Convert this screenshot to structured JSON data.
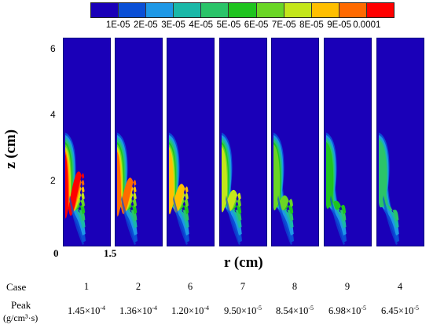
{
  "colorbar": {
    "colors": [
      "#1a00b8",
      "#0a4fd6",
      "#1e98e6",
      "#1ab8a8",
      "#2bc469",
      "#1fc41f",
      "#6ad625",
      "#c4e61a",
      "#ffbf00",
      "#ff6a00",
      "#ff0000"
    ],
    "labels": [
      "1E-05",
      "2E-05",
      "3E-05",
      "4E-05",
      "5E-05",
      "6E-05",
      "7E-05",
      "8E-05",
      "9E-05",
      "0.0001"
    ]
  },
  "axes": {
    "ylabel": "z (cm)",
    "yticks": [
      "6",
      "4",
      "2"
    ],
    "origin": "0",
    "xmax": "1.5",
    "xlabel": "r (cm)"
  },
  "table": {
    "case_label": "Case",
    "peak_label_1": "Peak",
    "peak_label_2": "(g/cm³·s)",
    "cases": [
      "1",
      "2",
      "6",
      "7",
      "8",
      "9",
      "4"
    ],
    "peaks": [
      {
        "mantissa": "1.45×10",
        "exp": "-4"
      },
      {
        "mantissa": "1.36×10",
        "exp": "-4"
      },
      {
        "mantissa": "1.20×10",
        "exp": "-4"
      },
      {
        "mantissa": "9.50×10",
        "exp": "-5"
      },
      {
        "mantissa": "8.54×10",
        "exp": "-5"
      },
      {
        "mantissa": "6.98×10",
        "exp": "-5"
      },
      {
        "mantissa": "6.45×10",
        "exp": "-5"
      }
    ]
  },
  "panels": [
    {
      "case": "1",
      "peak_fraction": 1.0
    },
    {
      "case": "2",
      "peak_fraction": 0.94
    },
    {
      "case": "6",
      "peak_fraction": 0.83
    },
    {
      "case": "7",
      "peak_fraction": 0.66
    },
    {
      "case": "8",
      "peak_fraction": 0.59
    },
    {
      "case": "9",
      "peak_fraction": 0.48
    },
    {
      "case": "4",
      "peak_fraction": 0.44
    }
  ]
}
